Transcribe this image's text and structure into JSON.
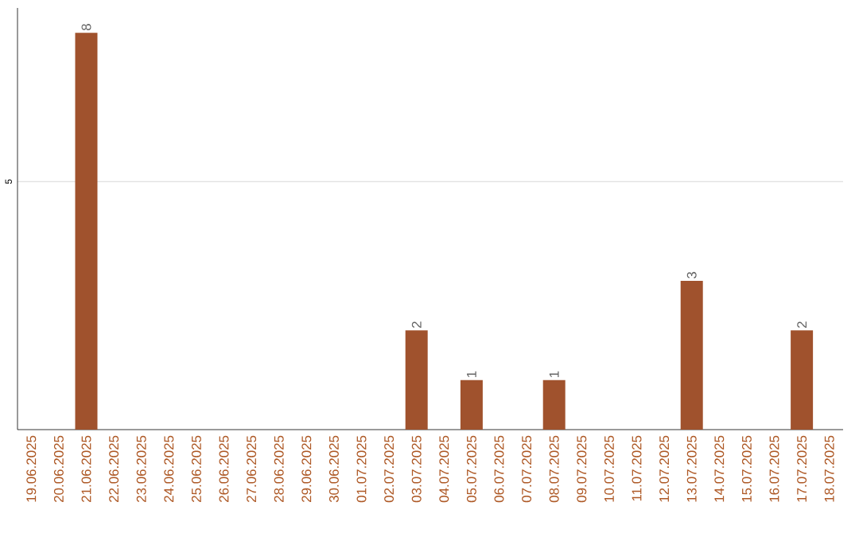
{
  "chart_data": {
    "type": "bar",
    "categories": [
      "19.06.2025",
      "20.06.2025",
      "21.06.2025",
      "22.06.2025",
      "23.06.2025",
      "24.06.2025",
      "25.06.2025",
      "26.06.2025",
      "27.06.2025",
      "28.06.2025",
      "29.06.2025",
      "30.06.2025",
      "01.07.2025",
      "02.07.2025",
      "03.07.2025",
      "04.07.2025",
      "05.07.2025",
      "06.07.2025",
      "07.07.2025",
      "08.07.2025",
      "09.07.2025",
      "10.07.2025",
      "11.07.2025",
      "12.07.2025",
      "13.07.2025",
      "14.07.2025",
      "15.07.2025",
      "16.07.2025",
      "17.07.2025",
      "18.07.2025"
    ],
    "values": [
      0,
      0,
      8,
      0,
      0,
      0,
      0,
      0,
      0,
      0,
      0,
      0,
      0,
      0,
      2,
      0,
      1,
      0,
      0,
      1,
      0,
      0,
      0,
      0,
      3,
      0,
      0,
      0,
      2,
      0
    ],
    "value_labels": [
      null,
      null,
      "8",
      null,
      null,
      null,
      null,
      null,
      null,
      null,
      null,
      null,
      null,
      null,
      "2",
      null,
      "1",
      null,
      null,
      "1",
      null,
      null,
      null,
      null,
      "3",
      null,
      null,
      null,
      "2",
      null
    ],
    "color": "#a0522d",
    "ylim": [
      0,
      8.5
    ],
    "yticks": [
      5
    ],
    "grid": "y"
  }
}
